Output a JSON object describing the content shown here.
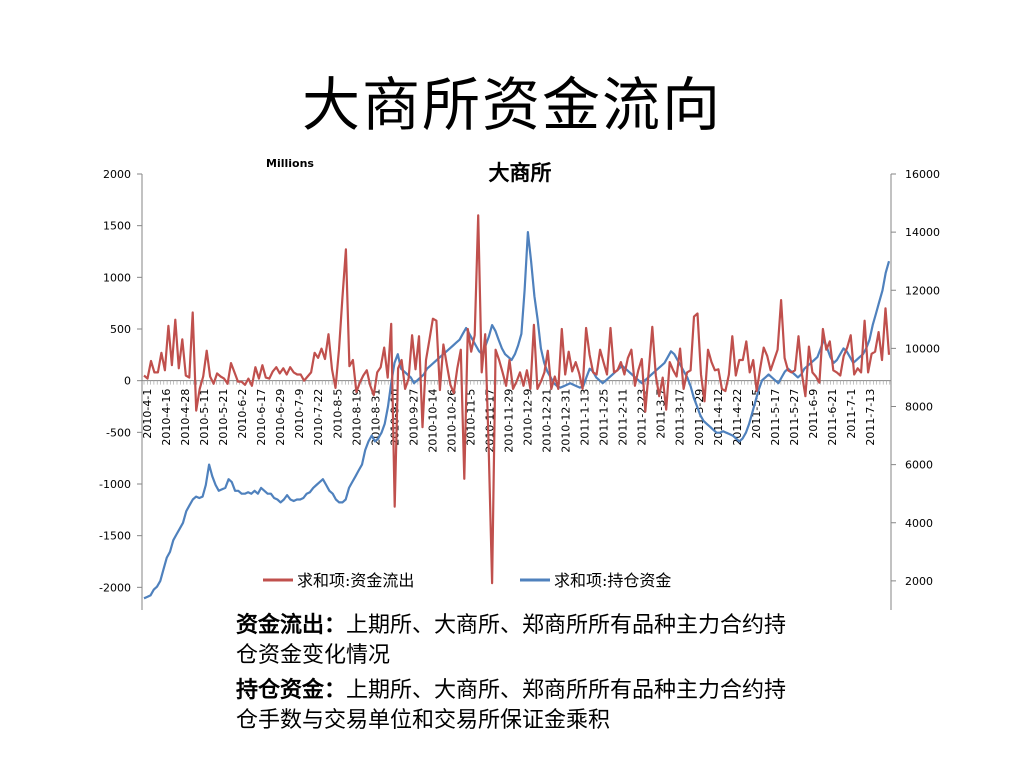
{
  "slide": {
    "title": "大商所资金流向",
    "notes": [
      {
        "term": "资金流出：",
        "text": "上期所、大商所、郑商所所有品种主力合约持仓资金变化情况"
      },
      {
        "term": "持仓资金：",
        "text": "上期所、大商所、郑商所所有品种主力合约持仓手数与交易单位和交易所保证金乘积"
      }
    ]
  },
  "chart_data": {
    "type": "line",
    "title": "大商所",
    "unit_label": "Millions",
    "y_left": {
      "min": -2500,
      "max": 2000,
      "ticks": [
        -2500,
        -2000,
        -1500,
        -1000,
        -500,
        0,
        500,
        1000,
        1500,
        2000
      ]
    },
    "y_right": {
      "min": 0,
      "max": 16000,
      "ticks": [
        0,
        2000,
        4000,
        6000,
        8000,
        10000,
        12000,
        14000,
        16000
      ]
    },
    "x_tick_labels": [
      "2010-4-1",
      "2010-4-16",
      "2010-4-28",
      "2010-5-11",
      "2010-5-21",
      "2010-6-2",
      "2010-6-17",
      "2010-6-29",
      "2010-7-9",
      "2010-7-22",
      "2010-8-5",
      "2010-8-19",
      "2010-8-31",
      "2010-9-10",
      "2010-9-27",
      "2010-10-14",
      "2010-10-26",
      "2010-11-5",
      "2010-11-17",
      "2010-11-29",
      "2010-12-9",
      "2010-12-21",
      "2010-12-31",
      "2011-1-13",
      "2011-1-25",
      "2011-2-11",
      "2011-2-23",
      "2011-3-7",
      "2011-3-17",
      "2011-3-29",
      "2011-4-12",
      "2011-4-22",
      "2011-5-5",
      "2011-5-17",
      "2011-5-27",
      "2011-6-9",
      "2011-6-21",
      "2011-7-1",
      "2011-7-13"
    ],
    "legend_position": "bottom",
    "grid": false,
    "series": [
      {
        "name": "求和项:资金流出",
        "axis": "left",
        "color": "#C0504D",
        "values": [
          50,
          20,
          190,
          80,
          80,
          270,
          100,
          530,
          150,
          590,
          120,
          400,
          50,
          30,
          660,
          -290,
          -80,
          40,
          290,
          40,
          -30,
          70,
          40,
          20,
          -30,
          170,
          80,
          -10,
          -10,
          -40,
          20,
          -50,
          130,
          20,
          150,
          30,
          20,
          90,
          130,
          70,
          120,
          60,
          130,
          80,
          60,
          60,
          0,
          40,
          80,
          270,
          220,
          310,
          210,
          450,
          110,
          -70,
          300,
          800,
          1270,
          140,
          200,
          -110,
          -20,
          50,
          100,
          -50,
          -140,
          80,
          130,
          320,
          30,
          550,
          -1220,
          120,
          200,
          -80,
          20,
          440,
          110,
          430,
          -450,
          200,
          400,
          600,
          580,
          -90,
          350,
          150,
          -40,
          -120,
          120,
          300,
          -950,
          500,
          280,
          440,
          1600,
          80,
          450,
          -620,
          -1960,
          300,
          200,
          80,
          -50,
          200,
          -80,
          -10,
          80,
          -50,
          100,
          -80,
          540,
          -80,
          -10,
          80,
          290,
          -80,
          40,
          -80,
          500,
          60,
          280,
          90,
          180,
          70,
          -80,
          510,
          250,
          80,
          60,
          300,
          180,
          60,
          510,
          80,
          100,
          180,
          60,
          220,
          300,
          -50,
          100,
          210,
          -300,
          100,
          520,
          50,
          -150,
          30,
          -280,
          180,
          100,
          40,
          310,
          -80,
          80,
          100,
          620,
          650,
          60,
          -200,
          300,
          180,
          100,
          110,
          -80,
          -100,
          60,
          430,
          50,
          200,
          200,
          380,
          80,
          200,
          -100,
          120,
          320,
          240,
          100,
          200,
          300,
          780,
          220,
          100,
          80,
          100,
          430,
          60,
          -150,
          330,
          80,
          40,
          -20,
          500,
          300,
          380,
          100,
          80,
          50,
          240,
          320,
          440,
          60,
          120,
          80,
          580,
          80,
          260,
          280,
          470,
          200,
          700,
          250
        ]
      },
      {
        "name": "求和项:持仓资金",
        "axis": "right",
        "color": "#4F81BD",
        "values": [
          1400,
          1450,
          1500,
          1700,
          1800,
          2000,
          2400,
          2800,
          3000,
          3400,
          3600,
          3800,
          4000,
          4400,
          4600,
          4800,
          4900,
          4850,
          4900,
          5300,
          6000,
          5600,
          5300,
          5100,
          5150,
          5200,
          5500,
          5400,
          5100,
          5100,
          5000,
          5000,
          5050,
          5000,
          5100,
          5000,
          5200,
          5100,
          5000,
          5000,
          4850,
          4800,
          4700,
          4800,
          4950,
          4800,
          4750,
          4800,
          4800,
          4850,
          5000,
          5050,
          5200,
          5300,
          5400,
          5500,
          5300,
          5100,
          5000,
          4800,
          4700,
          4700,
          4800,
          5200,
          5400,
          5600,
          5800,
          6000,
          6500,
          6800,
          7000,
          6800,
          6900,
          7100,
          7400,
          8000,
          8800,
          9500,
          9800,
          9300,
          9200,
          9100,
          9000,
          8800,
          8900,
          9000,
          9100,
          9300,
          9400,
          9500,
          9600,
          9700,
          9800,
          9900,
          10000,
          10100,
          10200,
          10300,
          10500,
          10700,
          10500,
          10300,
          10100,
          9900,
          9800,
          10100,
          10400,
          10800,
          10600,
          10300,
          10000,
          9800,
          9700,
          9600,
          9800,
          10100,
          10500,
          12000,
          14000,
          13000,
          11800,
          11000,
          10000,
          9500,
          9200,
          9000,
          8800,
          8700,
          8650,
          8700,
          8750,
          8800,
          8750,
          8700,
          8650,
          8700,
          9000,
          9300,
          9200,
          9000,
          8900,
          8800,
          8900,
          9000,
          9100,
          9200,
          9300,
          9400,
          9300,
          9200,
          9100,
          9000,
          8900,
          8800,
          8900,
          9000,
          9100,
          9200,
          9300,
          9400,
          9500,
          9700,
          9900,
          9800,
          9600,
          9400,
          9200,
          9000,
          8700,
          8300,
          8000,
          7700,
          7500,
          7400,
          7300,
          7200,
          7100,
          7100,
          7150,
          7100,
          7050,
          7000,
          6900,
          6800,
          6900,
          7100,
          7400,
          7800,
          8200,
          8600,
          8900,
          9000,
          9100,
          9000,
          8900,
          8800,
          9000,
          9200,
          9300,
          9200,
          9100,
          9000,
          9100,
          9300,
          9400,
          9500,
          9600,
          9700,
          10000,
          10300,
          10000,
          9700,
          9500,
          9600,
          9800,
          10000,
          9900,
          9700,
          9500,
          9600,
          9700,
          9800,
          10000,
          10300,
          10800,
          11200,
          11600,
          12000,
          12600,
          13000
        ]
      }
    ]
  }
}
